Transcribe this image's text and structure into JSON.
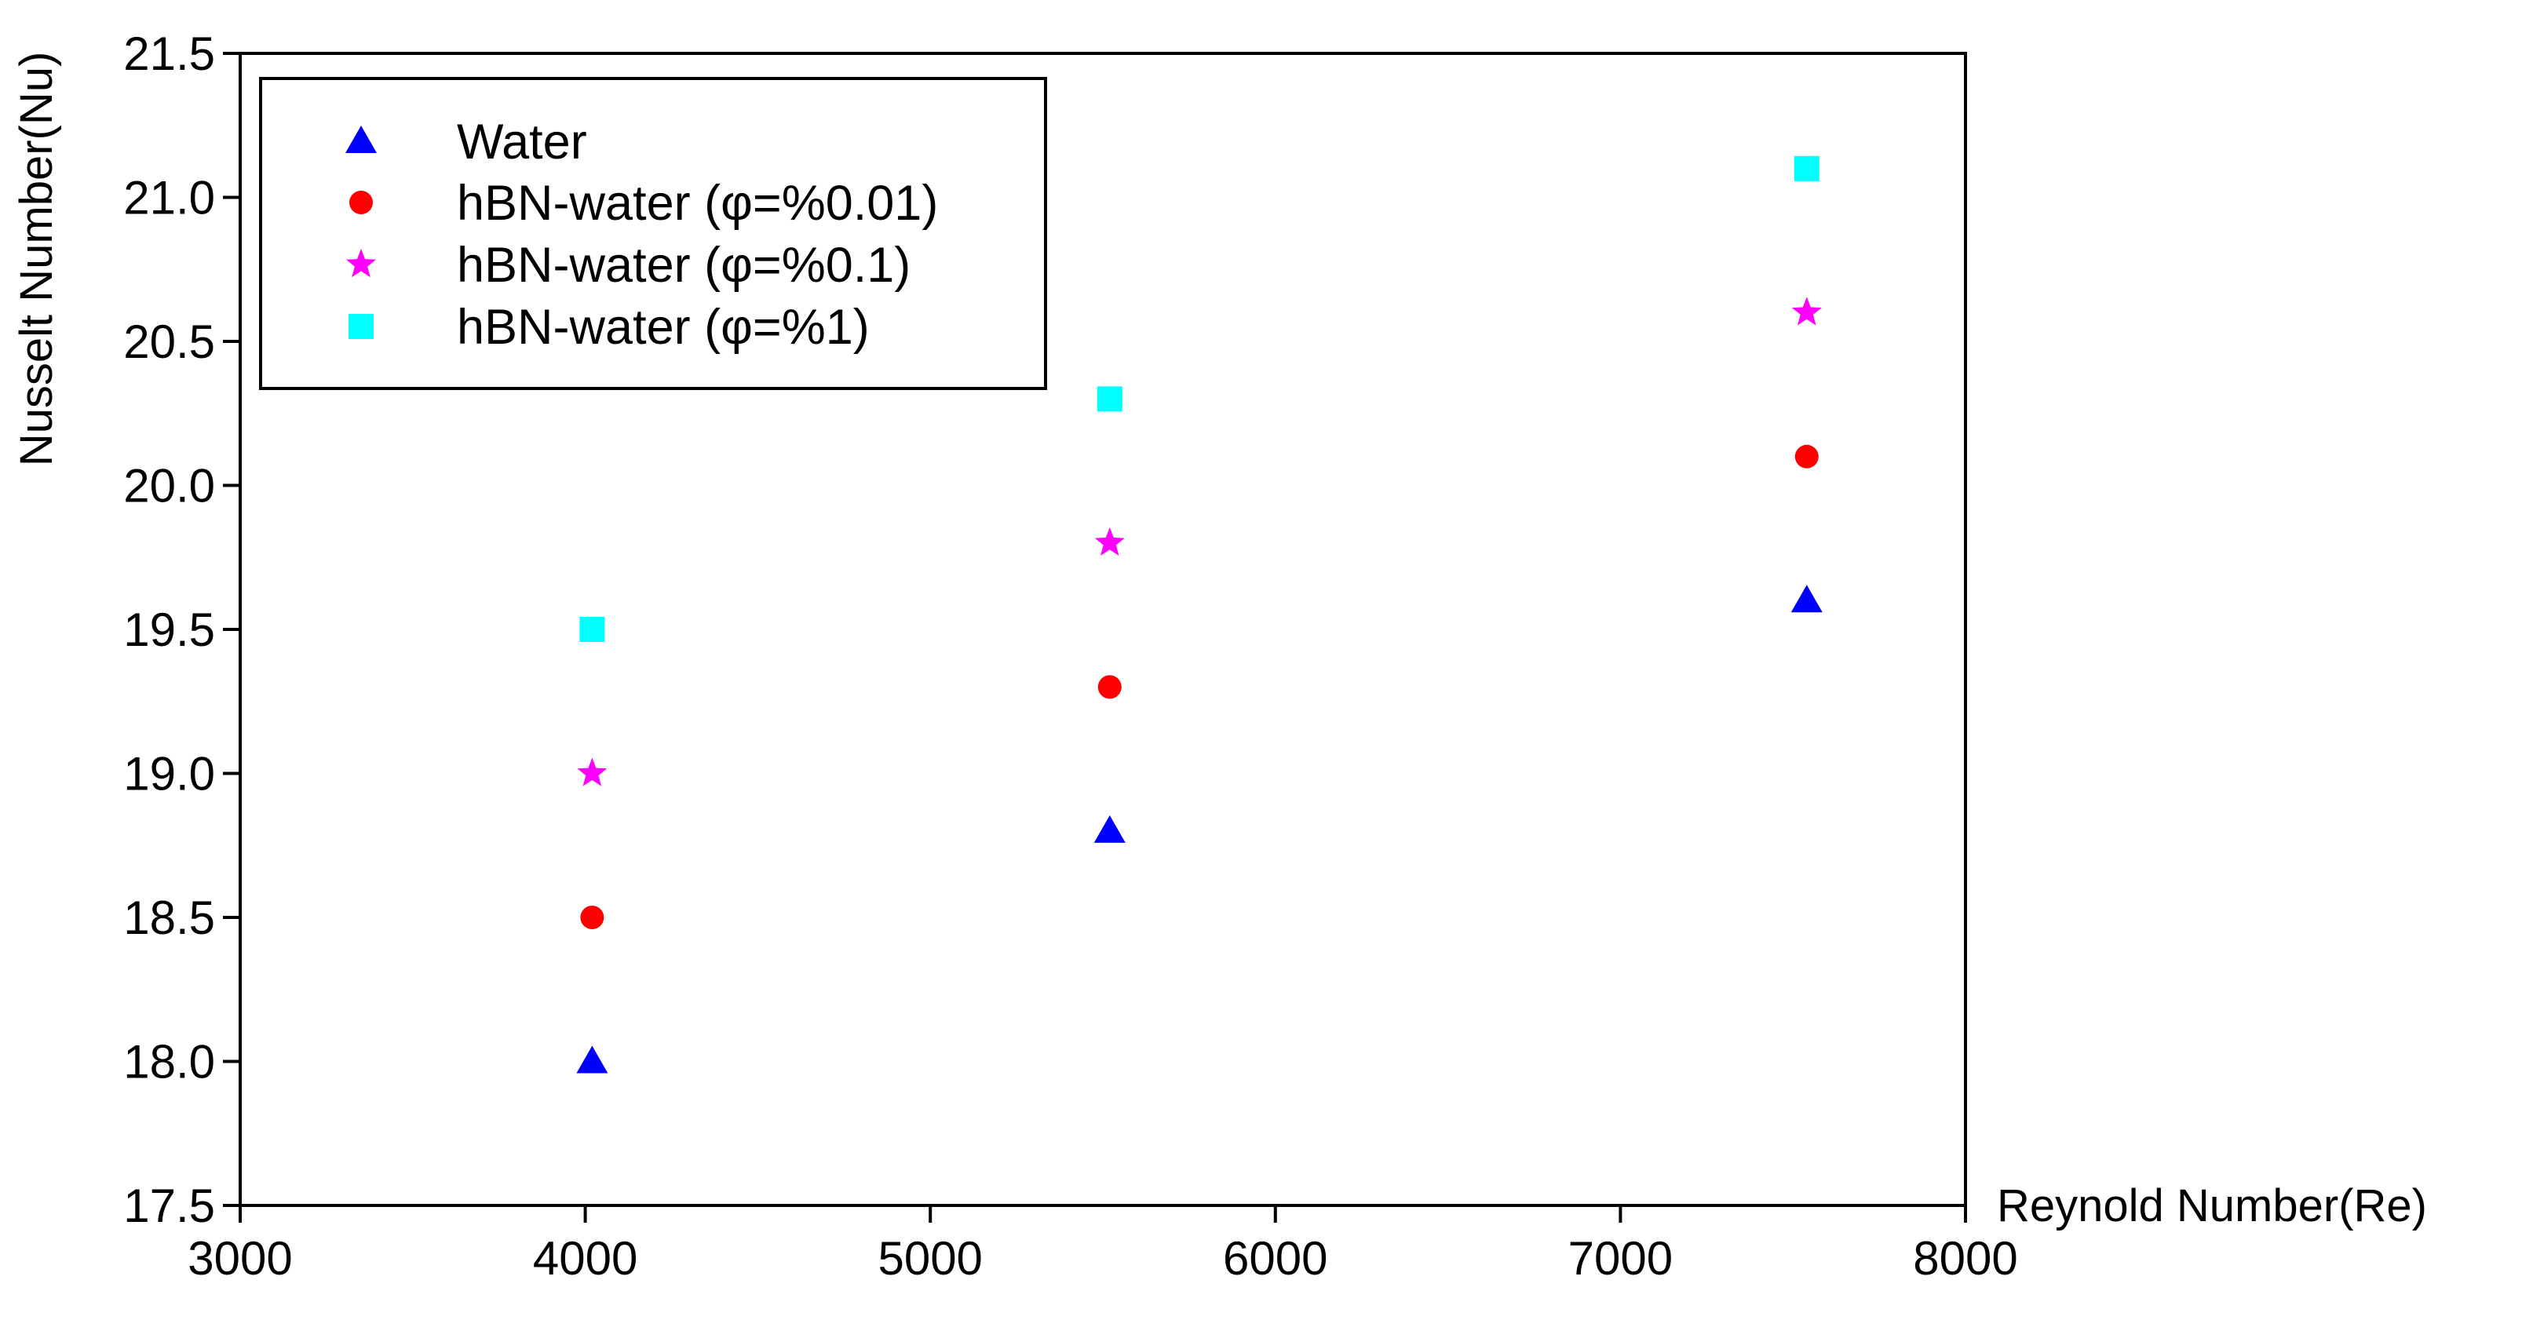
{
  "chart_data": {
    "type": "scatter",
    "title": "",
    "xlabel": "Reynold Number(Re)",
    "ylabel": "Nusselt Number(Nu)",
    "xlim": [
      3000,
      8000
    ],
    "ylim": [
      17.5,
      21.5
    ],
    "xticks": [
      3000,
      4000,
      5000,
      6000,
      7000,
      8000
    ],
    "yticks": [
      17.5,
      18.0,
      18.5,
      19.0,
      19.5,
      20.0,
      20.5,
      21.0,
      21.5
    ],
    "xtick_labels": [
      "3000",
      "4000",
      "5000",
      "6000",
      "7000",
      "8000"
    ],
    "ytick_labels": [
      "17.5",
      "18.0",
      "18.5",
      "19.0",
      "19.5",
      "20.0",
      "20.5",
      "21.0",
      "21.5"
    ],
    "grid": false,
    "legend_position": "top-left",
    "series": [
      {
        "name": "Water",
        "marker": "triangle",
        "color": "#0000ff",
        "x": [
          4020,
          5520,
          7540
        ],
        "y": [
          18.0,
          18.8,
          19.6
        ]
      },
      {
        "name": "hBN-water (φ=%0.01)",
        "marker": "circle",
        "color": "#ff0000",
        "x": [
          4020,
          5520,
          7540
        ],
        "y": [
          18.5,
          19.3,
          20.1
        ]
      },
      {
        "name": "hBN-water (φ=%0.1)",
        "marker": "star",
        "color": "#ff00ff",
        "x": [
          4020,
          5520,
          7540
        ],
        "y": [
          19.0,
          19.8,
          20.6
        ]
      },
      {
        "name": "hBN-water (φ=%1)",
        "marker": "square",
        "color": "#00ffff",
        "x": [
          4020,
          5520,
          7540
        ],
        "y": [
          19.5,
          20.3,
          21.1
        ]
      }
    ]
  }
}
